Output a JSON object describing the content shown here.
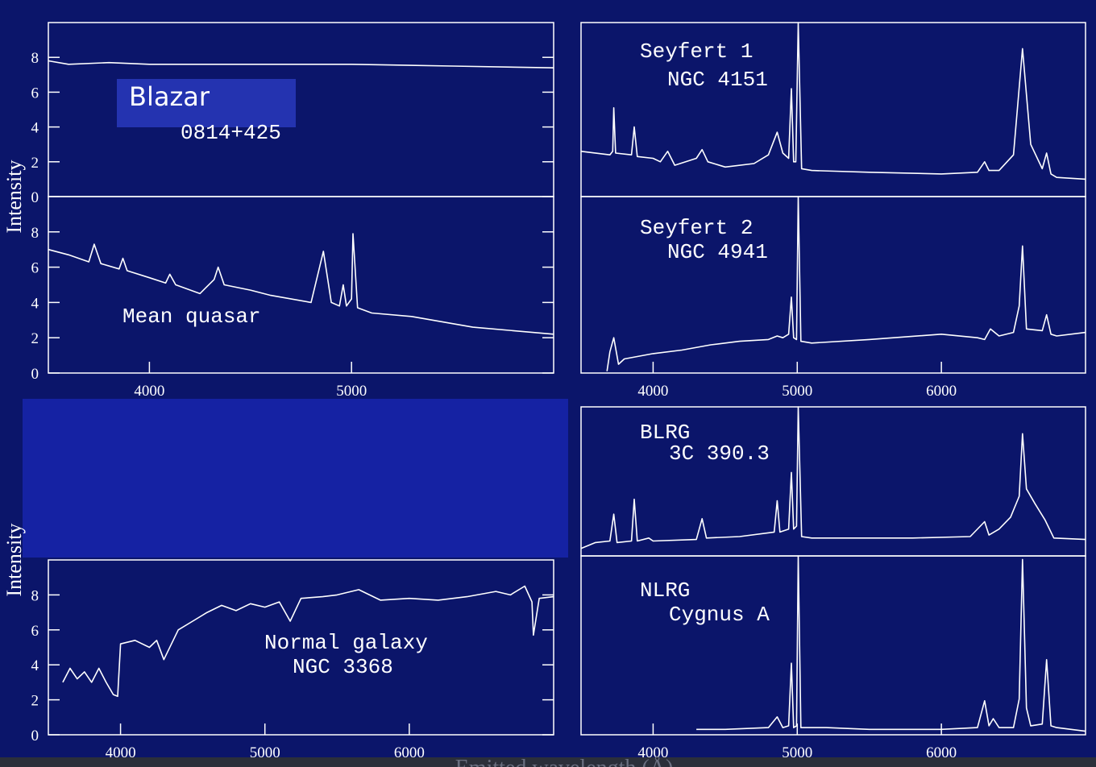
{
  "xlabel": "Emitted wavelength (Å)",
  "chart_data": [
    {
      "type": "line",
      "title": "Blazar",
      "subtitle": "0814+425",
      "ylabel": "Intensity",
      "xlim": [
        3500,
        6000
      ],
      "ylim": [
        0,
        10
      ],
      "yticks": [
        0,
        2,
        4,
        6,
        8
      ],
      "x": [
        3500,
        3600,
        3800,
        4000,
        4500,
        5000,
        5500,
        6000
      ],
      "values": [
        7.8,
        7.6,
        7.7,
        7.6,
        7.6,
        7.6,
        7.5,
        7.4
      ],
      "color": "#ffffff"
    },
    {
      "type": "line",
      "title": "Mean quasar",
      "xlim": [
        3500,
        6000
      ],
      "ylim": [
        0,
        10
      ],
      "yticks": [
        0,
        2,
        4,
        6,
        8
      ],
      "xticks": [
        4000,
        5000
      ],
      "x": [
        3500,
        3600,
        3700,
        3727,
        3760,
        3850,
        3869,
        3890,
        4000,
        4080,
        4101,
        4130,
        4250,
        4320,
        4340,
        4370,
        4500,
        4600,
        4800,
        4861,
        4900,
        4940,
        4959,
        4975,
        5000,
        5007,
        5030,
        5100,
        5300,
        5600,
        6000
      ],
      "values": [
        7.0,
        6.7,
        6.3,
        7.3,
        6.2,
        5.9,
        6.5,
        5.8,
        5.4,
        5.1,
        5.6,
        5.0,
        4.5,
        5.3,
        6.0,
        5.0,
        4.7,
        4.4,
        4.0,
        6.9,
        4.0,
        3.8,
        5.0,
        3.8,
        4.2,
        7.9,
        3.7,
        3.4,
        3.2,
        2.6,
        2.2
      ],
      "color": "#ffffff"
    },
    {
      "type": "line",
      "title": "Normal galaxy",
      "subtitle": "NGC 3368",
      "ylabel": "Intensity",
      "xlim": [
        3500,
        7000
      ],
      "ylim": [
        0,
        10
      ],
      "yticks": [
        0,
        2,
        4,
        6,
        8
      ],
      "xticks": [
        4000,
        5000,
        6000
      ],
      "x": [
        3600,
        3650,
        3700,
        3750,
        3800,
        3850,
        3900,
        3950,
        3980,
        4000,
        4100,
        4200,
        4250,
        4300,
        4400,
        4500,
        4600,
        4700,
        4800,
        4900,
        5000,
        5100,
        5175,
        5250,
        5400,
        5500,
        5650,
        5800,
        6000,
        6200,
        6400,
        6600,
        6700,
        6800,
        6850,
        6860,
        6900,
        7000
      ],
      "values": [
        3.0,
        3.8,
        3.2,
        3.6,
        3.0,
        3.8,
        3.0,
        2.3,
        2.2,
        5.2,
        5.4,
        5.0,
        5.4,
        4.3,
        6.0,
        6.5,
        7.0,
        7.4,
        7.1,
        7.5,
        7.3,
        7.6,
        6.5,
        7.8,
        7.9,
        8.0,
        8.3,
        7.7,
        7.8,
        7.7,
        7.9,
        8.2,
        8.0,
        8.5,
        7.6,
        5.7,
        7.8,
        7.9
      ],
      "color": "#ffffff"
    },
    {
      "type": "line",
      "title": "Seyfert 1",
      "subtitle": "NGC 4151",
      "xlim": [
        3500,
        7000
      ],
      "ylim": [
        0,
        10
      ],
      "x": [
        3500,
        3700,
        3720,
        3727,
        3740,
        3850,
        3869,
        3890,
        4000,
        4050,
        4101,
        4150,
        4300,
        4340,
        4380,
        4500,
        4700,
        4800,
        4861,
        4900,
        4940,
        4959,
        4975,
        4990,
        5007,
        5030,
        5100,
        5500,
        6000,
        6250,
        6300,
        6330,
        6400,
        6500,
        6563,
        6620,
        6700,
        6730,
        6760,
        6800,
        7000
      ],
      "values": [
        2.6,
        2.4,
        2.6,
        5.1,
        2.5,
        2.4,
        4.0,
        2.3,
        2.2,
        2.0,
        2.6,
        1.8,
        2.2,
        2.7,
        2.0,
        1.7,
        1.9,
        2.4,
        3.7,
        2.5,
        2.2,
        6.2,
        2.0,
        2.0,
        10,
        1.6,
        1.5,
        1.4,
        1.3,
        1.4,
        2.0,
        1.5,
        1.5,
        2.4,
        8.5,
        3.0,
        1.6,
        2.5,
        1.3,
        1.1,
        1.0
      ],
      "color": "#ffffff"
    },
    {
      "type": "line",
      "title": "Seyfert 2",
      "subtitle": "NGC 4941",
      "xlim": [
        3500,
        7000
      ],
      "ylim": [
        0,
        10
      ],
      "xticks": [
        4000,
        5000,
        6000
      ],
      "x": [
        3680,
        3700,
        3727,
        3760,
        3800,
        4000,
        4200,
        4400,
        4600,
        4800,
        4861,
        4900,
        4940,
        4959,
        4975,
        4995,
        5007,
        5025,
        5100,
        5500,
        6000,
        6250,
        6300,
        6340,
        6400,
        6500,
        6540,
        6563,
        6590,
        6700,
        6730,
        6760,
        6800,
        7000
      ],
      "values": [
        0.1,
        1.2,
        2.0,
        0.5,
        0.8,
        1.1,
        1.3,
        1.6,
        1.8,
        1.9,
        2.1,
        2.0,
        2.2,
        4.3,
        2.0,
        1.9,
        10,
        1.8,
        1.7,
        1.9,
        2.2,
        2.0,
        1.9,
        2.5,
        2.1,
        2.3,
        3.8,
        7.2,
        2.5,
        2.4,
        3.3,
        2.2,
        2.1,
        2.3
      ],
      "color": "#ffffff"
    },
    {
      "type": "line",
      "title": "BLRG",
      "subtitle": "3C 390.3",
      "xlim": [
        3500,
        7000
      ],
      "ylim": [
        0,
        10
      ],
      "x": [
        3500,
        3600,
        3700,
        3727,
        3750,
        3850,
        3869,
        3890,
        3970,
        4000,
        4300,
        4340,
        4370,
        4600,
        4840,
        4861,
        4880,
        4940,
        4959,
        4975,
        4995,
        5007,
        5030,
        5100,
        5800,
        6200,
        6300,
        6330,
        6400,
        6480,
        6540,
        6563,
        6590,
        6650,
        6720,
        6780,
        7000
      ],
      "values": [
        0.5,
        0.9,
        1.0,
        2.8,
        0.9,
        1.0,
        3.8,
        1.0,
        1.2,
        1.0,
        1.1,
        2.5,
        1.2,
        1.3,
        1.6,
        3.7,
        1.6,
        1.8,
        5.6,
        1.8,
        2.0,
        10,
        1.3,
        1.2,
        1.2,
        1.3,
        2.3,
        1.4,
        1.8,
        2.6,
        4.0,
        8.2,
        4.5,
        3.5,
        2.4,
        1.2,
        1.1
      ],
      "color": "#ffffff"
    },
    {
      "type": "line",
      "title": "NLRG",
      "subtitle": "Cygnus A",
      "xlim": [
        3500,
        7000
      ],
      "ylim": [
        0,
        10
      ],
      "xticks": [
        4000,
        5000,
        6000
      ],
      "x": [
        4300,
        4500,
        4800,
        4861,
        4900,
        4940,
        4959,
        4975,
        4995,
        5007,
        5025,
        5200,
        5500,
        6000,
        6250,
        6300,
        6330,
        6360,
        6400,
        6500,
        6540,
        6563,
        6590,
        6620,
        6700,
        6730,
        6760,
        6800,
        7000
      ],
      "values": [
        0.3,
        0.3,
        0.4,
        1.0,
        0.4,
        0.5,
        4.0,
        0.4,
        0.5,
        10,
        0.4,
        0.4,
        0.3,
        0.3,
        0.4,
        1.9,
        0.5,
        0.9,
        0.4,
        0.4,
        2.0,
        9.8,
        1.5,
        0.5,
        0.6,
        4.2,
        0.5,
        0.4,
        0.2
      ],
      "color": "#ffffff"
    }
  ]
}
